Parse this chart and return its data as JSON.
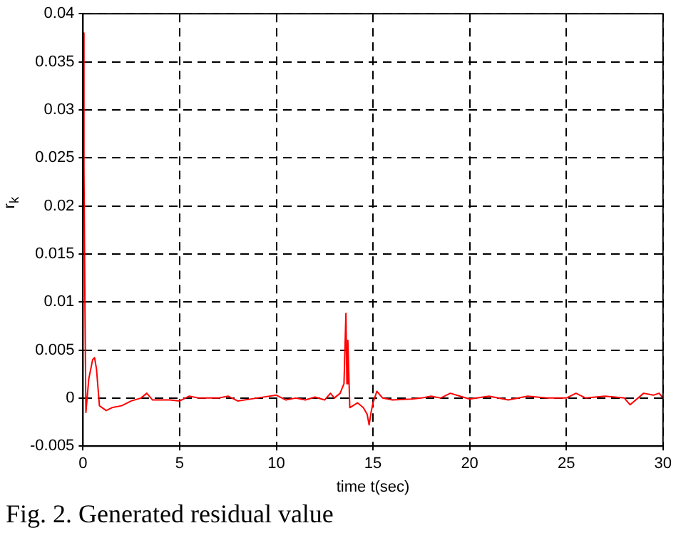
{
  "chart_data": {
    "type": "line",
    "xlabel": "time t(sec)",
    "ylabel": "r$_{k}$",
    "annotations": [
      "Fig. 2. Generated residual value"
    ],
    "xlim": [
      0,
      30
    ],
    "xticks": [
      0,
      5,
      10,
      15,
      20,
      25,
      30
    ],
    "ylim": [
      -0.005,
      0.04
    ],
    "yticks": [
      -0.005,
      0,
      0.005,
      0.01,
      0.015,
      0.02,
      0.025,
      0.03,
      0.035,
      0.04
    ],
    "grid": true,
    "series": [
      {
        "color": "#ff0000",
        "x": [
          0,
          0.05,
          0.1,
          0.15,
          0.3,
          0.5,
          0.6,
          0.7,
          0.85,
          1.2,
          1.5,
          2,
          2.5,
          3,
          3.3,
          3.6,
          4.5,
          5,
          5.5,
          6,
          7,
          7.5,
          8,
          9,
          10,
          10.5,
          11,
          11.5,
          12,
          12.5,
          12.8,
          13,
          13.3,
          13.5,
          13.6,
          13.65,
          13.7,
          13.8,
          14.2,
          14.5,
          14.7,
          14.8,
          14.9,
          15,
          15.2,
          15.5,
          16,
          17,
          17.5,
          18,
          18.5,
          19,
          19.5,
          20,
          21,
          22,
          23,
          24,
          25,
          25.5,
          26,
          27,
          28,
          28.3,
          29,
          29.5,
          29.8,
          30
        ],
        "values": [
          0.038,
          0.024,
          0.01,
          -0.0015,
          0.002,
          0.004,
          0.0042,
          0.003,
          -0.0008,
          -0.0013,
          -0.001,
          -0.0008,
          -0.0003,
          0,
          0.0005,
          -0.0002,
          -0.0002,
          -0.0003,
          0.0002,
          0,
          0,
          0.0002,
          -0.0003,
          0,
          0.0003,
          -0.0002,
          0,
          -0.0002,
          0.0001,
          -0.0002,
          0.0005,
          0,
          0.0005,
          0.0015,
          0.0088,
          0.0015,
          0.006,
          -0.001,
          -0.0005,
          -0.001,
          -0.0017,
          -0.0028,
          -0.0015,
          -0.0005,
          0.0007,
          0,
          -0.0002,
          -0.0001,
          0,
          0.0002,
          0,
          0.0005,
          0.0002,
          -0.0001,
          0.0002,
          -0.0002,
          0.0002,
          0,
          0,
          0.0005,
          0,
          0.0002,
          0,
          -0.0007,
          0.0005,
          0.0003,
          0.0005,
          0
        ]
      }
    ]
  }
}
